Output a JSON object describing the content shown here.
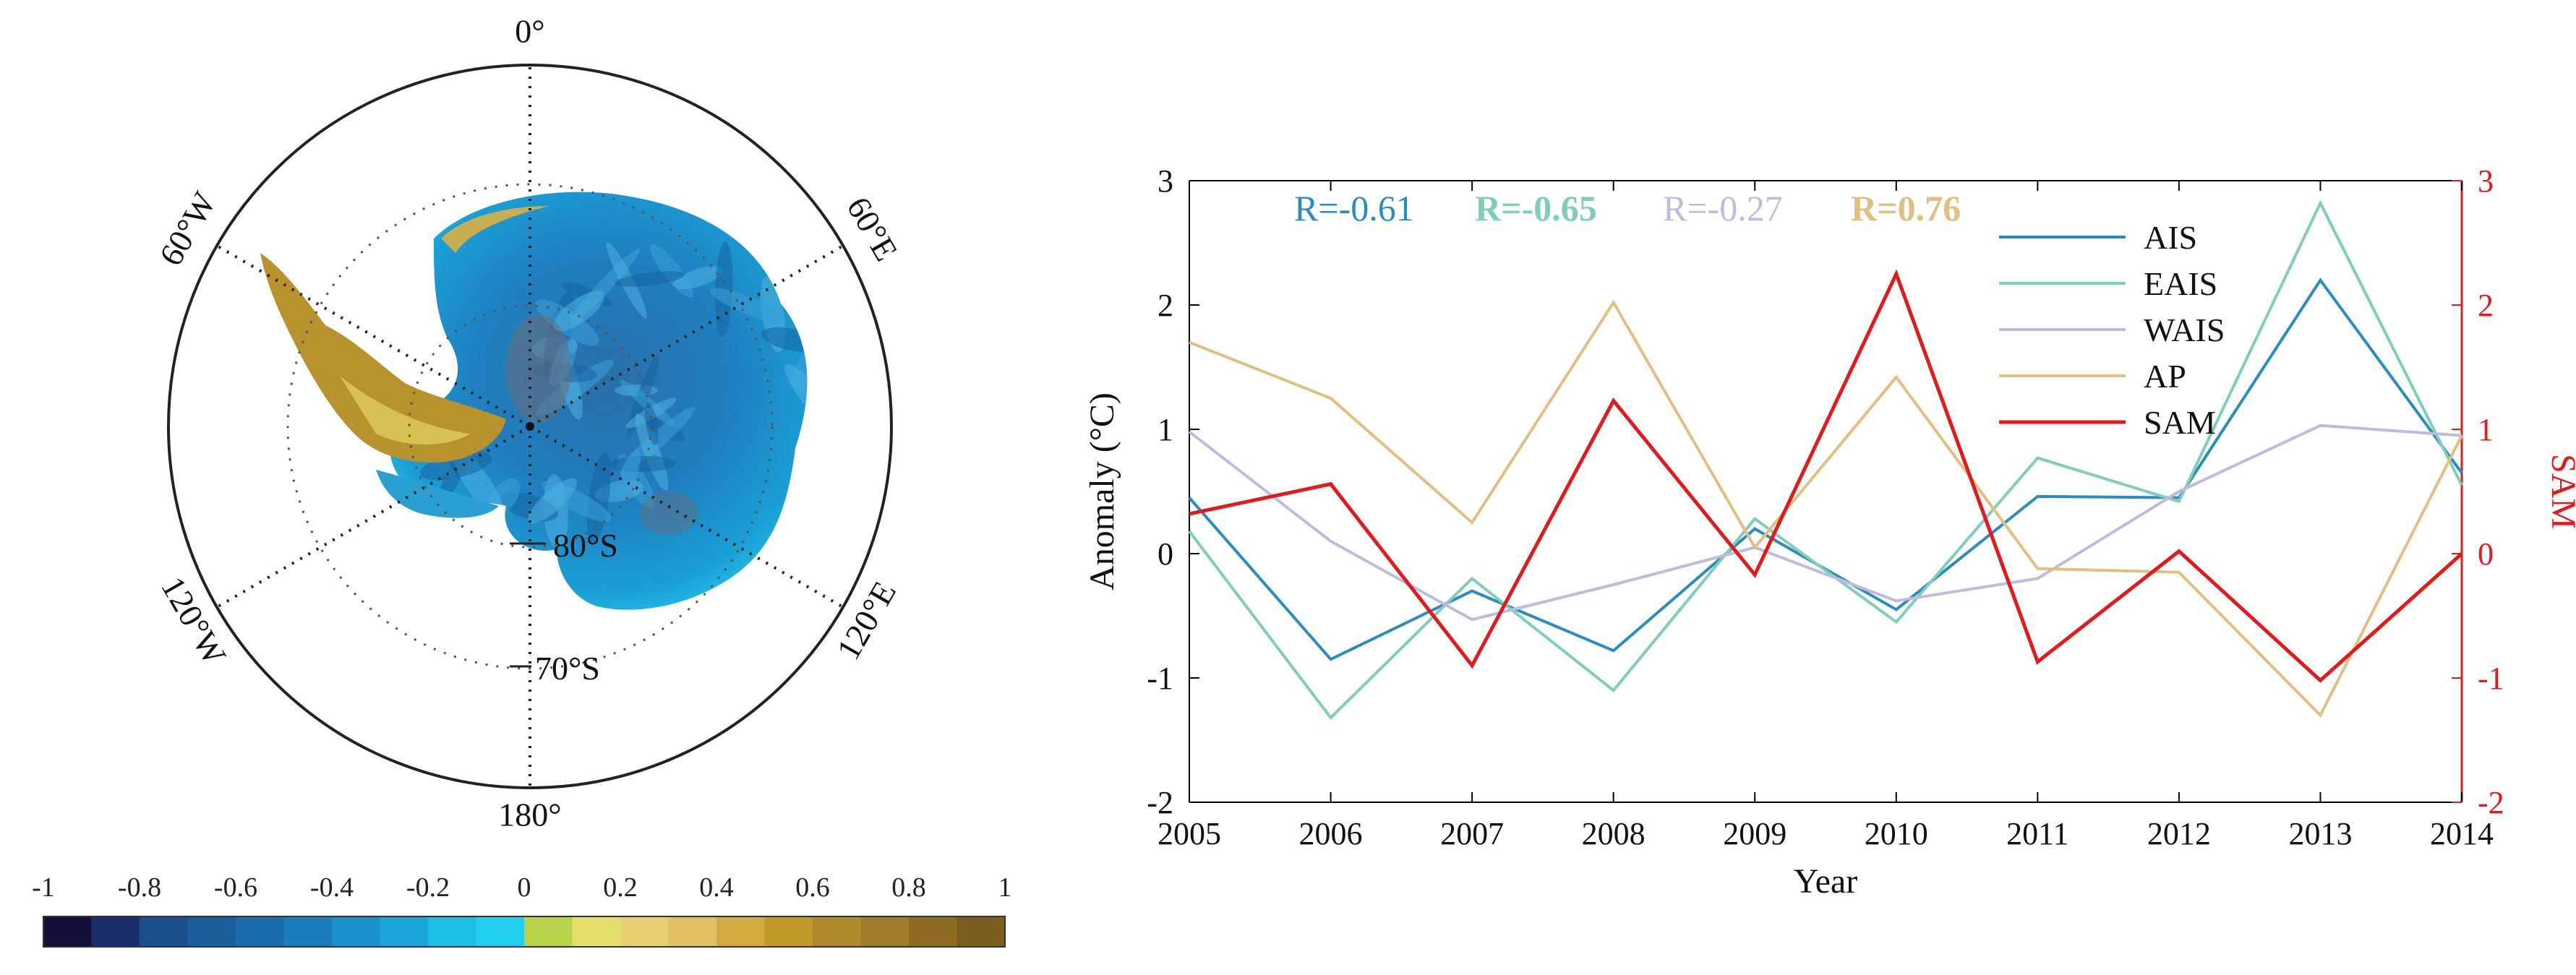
{
  "map": {
    "lon_labels": [
      {
        "text": "0°",
        "angle": 0
      },
      {
        "text": "60°E",
        "angle": 60
      },
      {
        "text": "120°E",
        "angle": 120
      },
      {
        "text": "180°",
        "angle": 180
      },
      {
        "text": "120°W",
        "angle": 240
      },
      {
        "text": "60°W",
        "angle": 300
      }
    ],
    "lat_labels": [
      "80°S",
      "70°S"
    ]
  },
  "colorbar": {
    "ticks": [
      "-1",
      "-0.8",
      "-0.6",
      "-0.4",
      "-0.2",
      "0",
      "0.2",
      "0.4",
      "0.6",
      "0.8",
      "1"
    ],
    "colors": [
      "#14103a",
      "#1a2f6e",
      "#1a4f8e",
      "#1a5e9e",
      "#1a6cac",
      "#1a7dbe",
      "#1a90cc",
      "#1aa6da",
      "#1ebde6",
      "#20d0ee",
      "#b8d24a",
      "#e2e06a",
      "#e8d070",
      "#e0c060",
      "#d2aa40",
      "#c29828",
      "#b08a2a",
      "#a07c2a",
      "#8e6c22",
      "#7a5e20"
    ]
  },
  "chart_data": {
    "type": "line",
    "xlabel": "Year",
    "ylabel": "Anomaly (°C)",
    "y2label": "SAM",
    "x": [
      2005,
      2006,
      2007,
      2008,
      2009,
      2010,
      2011,
      2012,
      2013,
      2014
    ],
    "xlim": [
      2005,
      2014
    ],
    "ylim": [
      -2,
      3
    ],
    "y2lim": [
      -2,
      3
    ],
    "yticks": [
      "-2",
      "-1",
      "0",
      "1",
      "2",
      "3"
    ],
    "y2ticks": [
      "-2",
      "-1",
      "0",
      "1",
      "2",
      "3"
    ],
    "legend_position": "top-right",
    "correlations": [
      {
        "text": "R=-0.61",
        "color": "#2b8cbe",
        "bold": false
      },
      {
        "text": "R=-0.65",
        "color": "#7fcdbb",
        "bold": true
      },
      {
        "text": "R=-0.27",
        "color": "#bcbddc",
        "bold": false
      },
      {
        "text": "R=0.76",
        "color": "#e0c080",
        "bold": true
      }
    ],
    "series": [
      {
        "name": "AIS",
        "color": "#2b8cbe",
        "axis": "left",
        "values": [
          0.45,
          -0.85,
          -0.3,
          -0.78,
          0.2,
          -0.45,
          0.46,
          0.45,
          2.2,
          0.65
        ]
      },
      {
        "name": "EAIS",
        "color": "#7fcdbb",
        "axis": "left",
        "values": [
          0.18,
          -1.32,
          -0.2,
          -1.1,
          0.28,
          -0.55,
          0.77,
          0.42,
          2.82,
          0.55
        ]
      },
      {
        "name": "WAIS",
        "color": "#bcbddc",
        "axis": "left",
        "values": [
          0.98,
          0.1,
          -0.53,
          -0.25,
          0.05,
          -0.38,
          -0.2,
          0.5,
          1.03,
          0.95
        ]
      },
      {
        "name": "AP",
        "color": "#e0c080",
        "axis": "left",
        "values": [
          1.7,
          1.25,
          0.25,
          2.02,
          0.05,
          1.42,
          -0.12,
          -0.15,
          -1.3,
          0.95
        ]
      },
      {
        "name": "SAM",
        "color": "#e31a1c",
        "axis": "right",
        "values": [
          0.32,
          0.56,
          -0.9,
          1.23,
          -0.17,
          2.25,
          -0.87,
          0.02,
          -1.02,
          0.0
        ]
      }
    ]
  }
}
